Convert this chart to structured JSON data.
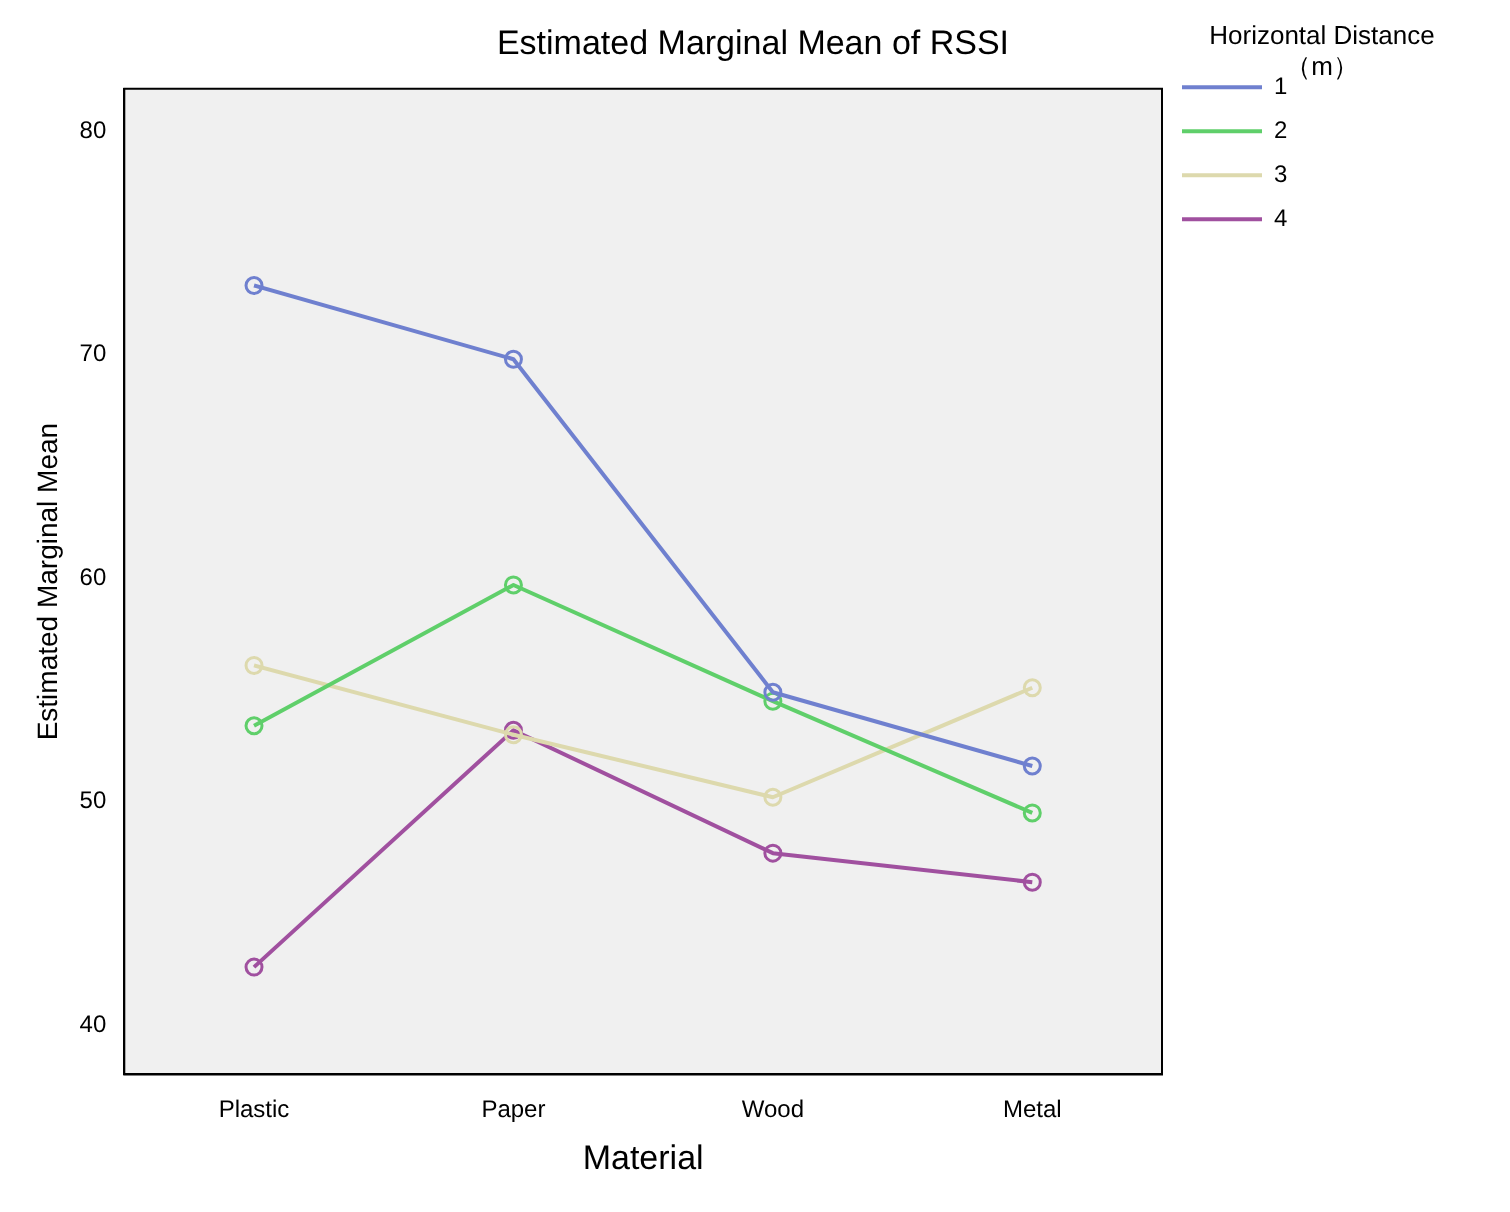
{
  "chart_data": {
    "type": "line",
    "title": "Estimated Marginal Mean of RSSI",
    "xlabel": "Material",
    "ylabel": "Estimated Marginal Mean",
    "legend_title": "Horizontal Distance （m）",
    "categories": [
      "Plastic",
      "Paper",
      "Wood",
      "Metal"
    ],
    "series": [
      {
        "name": "1",
        "color": "#6f80cf",
        "values": [
          73.1,
          69.8,
          54.9,
          51.6
        ]
      },
      {
        "name": "2",
        "color": "#5fcf6a",
        "values": [
          53.4,
          59.7,
          54.5,
          49.5
        ]
      },
      {
        "name": "3",
        "color": "#ddd9ad",
        "values": [
          56.1,
          53.0,
          50.2,
          55.1
        ]
      },
      {
        "name": "4",
        "color": "#a0509f",
        "values": [
          42.6,
          53.2,
          47.7,
          46.4
        ]
      }
    ],
    "ylim": [
      37.8,
      81.9
    ],
    "yticks": [
      40,
      50,
      60,
      70,
      80
    ],
    "grid": false,
    "legend": "right",
    "marker": "circle",
    "line_style": "solid"
  }
}
